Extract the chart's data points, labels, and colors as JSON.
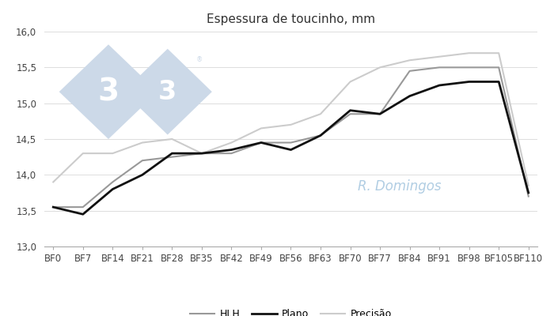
{
  "title": "Espessura de toucinho, mm",
  "x_labels": [
    "BF0",
    "BF7",
    "BF14",
    "BF21",
    "BF28",
    "BF35",
    "BF42",
    "BF49",
    "BF56",
    "BF63",
    "BF70",
    "BF77",
    "BF84",
    "BF91",
    "BF98",
    "BF105",
    "BF110"
  ],
  "HLH": [
    13.55,
    13.55,
    13.9,
    14.2,
    14.25,
    14.3,
    14.3,
    14.45,
    14.45,
    14.55,
    14.85,
    14.85,
    15.45,
    15.5,
    15.5,
    15.5,
    13.7
  ],
  "Plano": [
    13.55,
    13.45,
    13.8,
    14.0,
    14.3,
    14.3,
    14.35,
    14.45,
    14.35,
    14.55,
    14.9,
    14.85,
    15.1,
    15.25,
    15.3,
    15.3,
    13.75
  ],
  "Precisao": [
    13.9,
    14.3,
    14.3,
    14.45,
    14.5,
    14.3,
    14.45,
    14.65,
    14.7,
    14.85,
    15.3,
    15.5,
    15.6,
    15.65,
    15.7,
    15.7,
    13.85
  ],
  "HLH_color": "#999999",
  "Plano_color": "#111111",
  "Precisao_color": "#cccccc",
  "ylim": [
    13.0,
    16.0
  ],
  "yticks": [
    13.0,
    13.5,
    14.0,
    14.5,
    15.0,
    15.5,
    16.0
  ],
  "ytick_labels": [
    "13,0",
    "13,5",
    "14,0",
    "14,5",
    "15,0",
    "15,5",
    "16,0"
  ],
  "bg_color": "#ffffff",
  "watermark_diamond_color": "#ccd9e8",
  "watermark_text": "R. Domingos",
  "legend_labels": [
    "HLH",
    "Plano",
    "Precisão"
  ],
  "title_fontsize": 11,
  "tick_fontsize": 8.5,
  "legend_fontsize": 9
}
